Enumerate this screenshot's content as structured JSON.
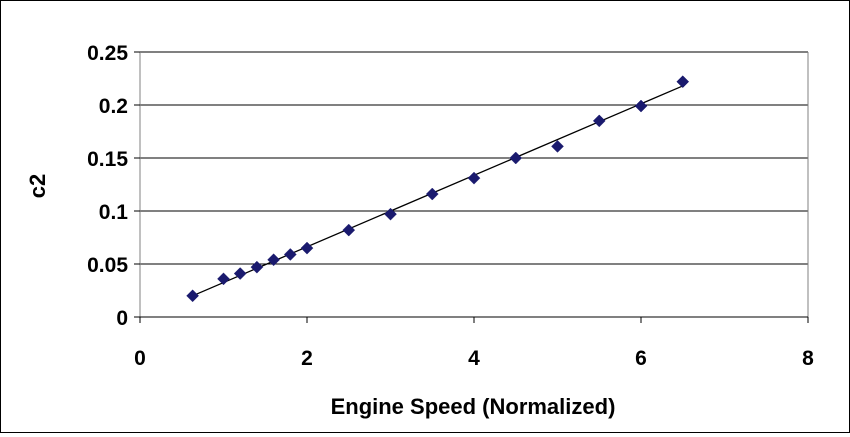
{
  "chart_data": {
    "type": "scatter",
    "title": "",
    "xlabel": "Engine Speed (Normalized)",
    "ylabel": "c2",
    "xlim": [
      0,
      8
    ],
    "ylim": [
      0,
      0.25
    ],
    "x_ticks": [
      0,
      2,
      4,
      6,
      8
    ],
    "y_ticks": [
      0,
      0.05,
      0.1,
      0.15,
      0.2,
      0.25
    ],
    "x_tick_labels": [
      "0",
      "2",
      "4",
      "6",
      "8"
    ],
    "y_tick_labels": [
      "0",
      "0.05",
      "0.1",
      "0.15",
      "0.2",
      "0.25"
    ],
    "grid": "horizontal",
    "legend": "none",
    "series": [
      {
        "marker": "diamond",
        "color": "#1a1a6e",
        "points": [
          {
            "x": 0.63,
            "y": 0.02
          },
          {
            "x": 1.0,
            "y": 0.036
          },
          {
            "x": 1.2,
            "y": 0.041
          },
          {
            "x": 1.4,
            "y": 0.047
          },
          {
            "x": 1.6,
            "y": 0.054
          },
          {
            "x": 1.8,
            "y": 0.059
          },
          {
            "x": 2.0,
            "y": 0.065
          },
          {
            "x": 2.5,
            "y": 0.082
          },
          {
            "x": 3.0,
            "y": 0.097
          },
          {
            "x": 3.5,
            "y": 0.116
          },
          {
            "x": 4.0,
            "y": 0.131
          },
          {
            "x": 4.5,
            "y": 0.15
          },
          {
            "x": 5.0,
            "y": 0.161
          },
          {
            "x": 5.5,
            "y": 0.185
          },
          {
            "x": 6.0,
            "y": 0.199
          },
          {
            "x": 6.5,
            "y": 0.222
          }
        ]
      }
    ],
    "trendline": {
      "type": "linear",
      "color": "#000000",
      "from": {
        "x": 0.63,
        "y": 0.02
      },
      "to": {
        "x": 6.5,
        "y": 0.218
      }
    }
  }
}
